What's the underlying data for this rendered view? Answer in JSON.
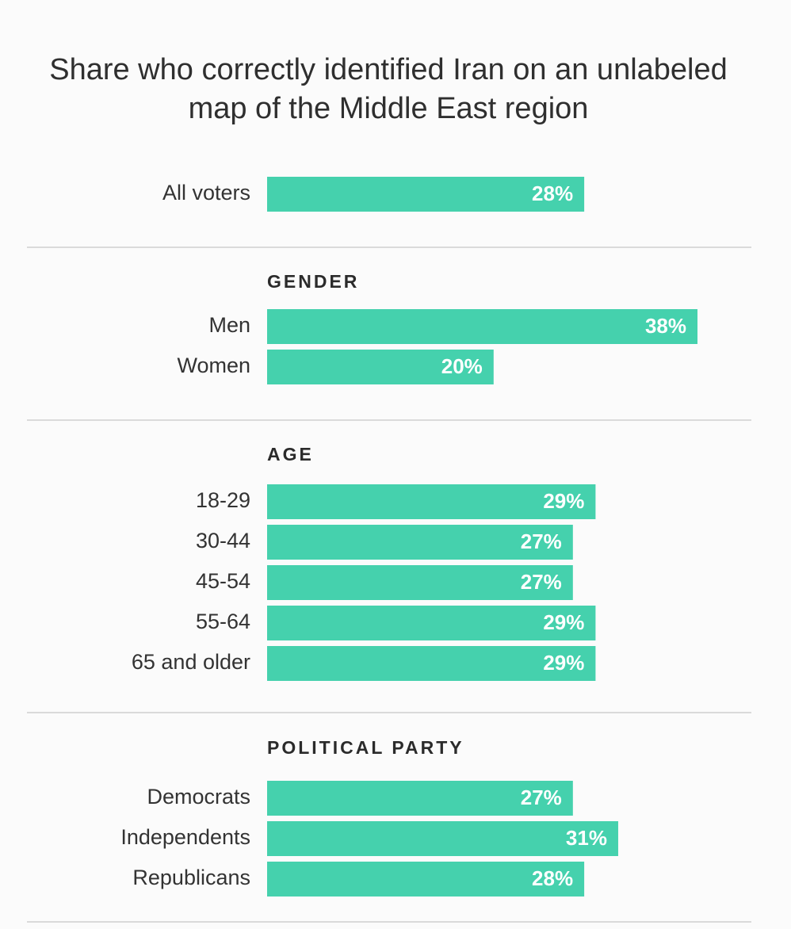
{
  "chart_data": {
    "type": "bar",
    "orientation": "horizontal",
    "title": "Share who correctly identified Iran on an unlabeled map of the Middle East region",
    "bar_color": "#45d1ad",
    "xlim": [
      0,
      38
    ],
    "groups": [
      {
        "heading": "",
        "categories": [
          "All voters"
        ],
        "values": [
          28
        ]
      },
      {
        "heading": "GENDER",
        "categories": [
          "Men",
          "Women"
        ],
        "values": [
          38,
          20
        ]
      },
      {
        "heading": "AGE",
        "categories": [
          "18-29",
          "30-44",
          "45-54",
          "55-64",
          "65 and older"
        ],
        "values": [
          29,
          27,
          27,
          29,
          29
        ]
      },
      {
        "heading": "POLITICAL PARTY",
        "categories": [
          "Democrats",
          "Independents",
          "Republicans"
        ],
        "values": [
          27,
          31,
          28
        ]
      }
    ]
  }
}
